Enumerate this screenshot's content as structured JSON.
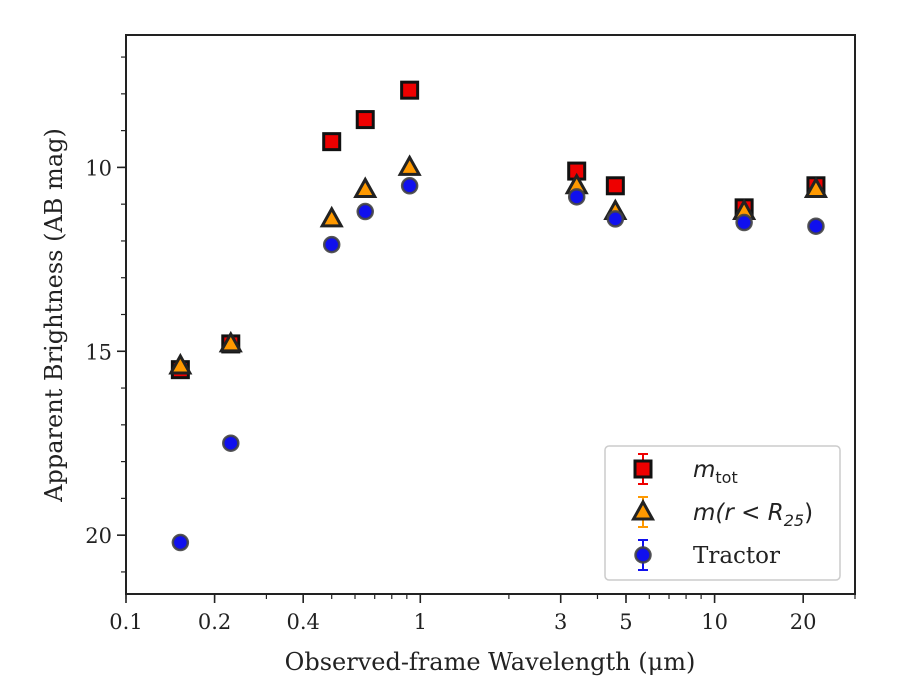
{
  "chart_data": {
    "type": "scatter",
    "title": "",
    "xlabel": "Observed-frame Wavelength (μm)",
    "ylabel": "Apparent Brightness (AB mag)",
    "x_scale": "log",
    "y_inverted": true,
    "xlim": [
      0.1,
      30
    ],
    "ylim": [
      21.6,
      6.4
    ],
    "x_ticks": [
      0.1,
      0.2,
      0.4,
      1,
      3,
      5,
      10,
      20
    ],
    "x_tick_labels": [
      "0.1",
      "0.2",
      "0.4",
      "1",
      "3",
      "5",
      "10",
      "20"
    ],
    "y_ticks": [
      10,
      15,
      20
    ],
    "y_tick_labels": [
      "10",
      "15",
      "20"
    ],
    "grid": false,
    "legend_position": "lower-right",
    "series": [
      {
        "name": "m_tot",
        "legend_label": {
          "main": "m",
          "sub": "tot"
        },
        "marker": "square",
        "color": "#ee0000",
        "edge_color": "#111111",
        "x": [
          0.153,
          0.227,
          0.5,
          0.65,
          0.92,
          3.4,
          4.6,
          12.6,
          22.1
        ],
        "y": [
          15.5,
          14.8,
          9.3,
          8.7,
          7.9,
          10.1,
          10.5,
          11.1,
          10.5
        ]
      },
      {
        "name": "m(r < R25)",
        "legend_label": {
          "main": "m(r < R",
          "sub": "25",
          "tail": ")"
        },
        "marker": "triangle",
        "color": "#ff9900",
        "edge_color": "#222222",
        "x": [
          0.153,
          0.227,
          0.5,
          0.65,
          0.92,
          3.4,
          4.6,
          12.6,
          22.1
        ],
        "y": [
          15.4,
          14.8,
          11.4,
          10.6,
          10.0,
          10.5,
          11.2,
          11.2,
          10.6
        ]
      },
      {
        "name": "Tractor",
        "legend_label": {
          "main": "Tractor"
        },
        "marker": "circle",
        "color": "#1010ee",
        "edge_color": "#444444",
        "x": [
          0.153,
          0.227,
          0.5,
          0.65,
          0.92,
          3.4,
          4.6,
          12.6,
          22.1
        ],
        "y": [
          20.2,
          17.5,
          12.1,
          11.2,
          10.5,
          10.8,
          11.4,
          11.5,
          11.6
        ]
      }
    ]
  }
}
